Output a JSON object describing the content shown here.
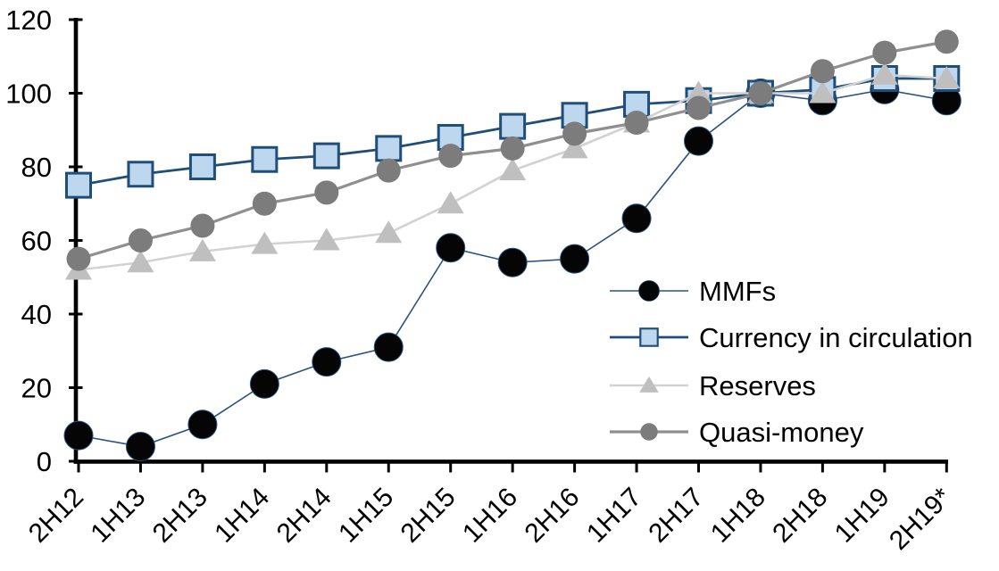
{
  "chart_data": {
    "type": "line",
    "title": "",
    "xlabel": "",
    "ylabel": "",
    "categories": [
      "2H12",
      "1H13",
      "2H13",
      "1H14",
      "2H14",
      "1H15",
      "2H15",
      "1H16",
      "2H16",
      "1H17",
      "2H17",
      "1H18",
      "2H18",
      "1H19",
      "2H19*"
    ],
    "series": [
      {
        "name": "MMFs",
        "marker": "circle",
        "marker_color": "#050505",
        "marker_border": "#2B527E",
        "line_color": "#2B527E",
        "line_width": 1.6,
        "marker_size": 16,
        "values": [
          7,
          4,
          10,
          21,
          27,
          31,
          58,
          54,
          55,
          66,
          87,
          100,
          98,
          101,
          98
        ]
      },
      {
        "name": "Currency in circulation",
        "marker": "square",
        "marker_color": "#BDD7EE",
        "marker_border": "#1F4E79",
        "line_color": "#1F4E79",
        "line_width": 2.8,
        "marker_size": 13.5,
        "values": [
          75,
          78,
          80,
          82,
          83,
          85,
          88,
          91,
          94,
          97,
          98,
          100,
          101,
          104,
          104
        ]
      },
      {
        "name": "Reserves",
        "marker": "triangle",
        "marker_color": "#BFBFBF",
        "marker_border": "none",
        "line_color": "#D2D2D2",
        "line_width": 2.6,
        "marker_size": 15,
        "values": [
          52,
          54,
          57,
          59,
          60,
          62,
          70,
          79,
          85,
          92,
          100,
          100,
          100,
          105,
          104
        ]
      },
      {
        "name": "Quasi-money",
        "marker": "circle",
        "marker_color": "#7C7C7C",
        "marker_border": "none",
        "line_color": "#8F8F8F",
        "line_width": 3.2,
        "marker_size": 13.5,
        "values": [
          55,
          60,
          64,
          70,
          73,
          79,
          83,
          85,
          89,
          92,
          96,
          100,
          106,
          111,
          114
        ]
      }
    ],
    "ylim": [
      0,
      120
    ],
    "yticks": [
      0,
      20,
      40,
      60,
      80,
      100,
      120
    ],
    "grid": false,
    "legend_position": "inside-right",
    "axis_color": "#000000",
    "text_color": "#000000",
    "background_color": "#FFFFFF"
  }
}
